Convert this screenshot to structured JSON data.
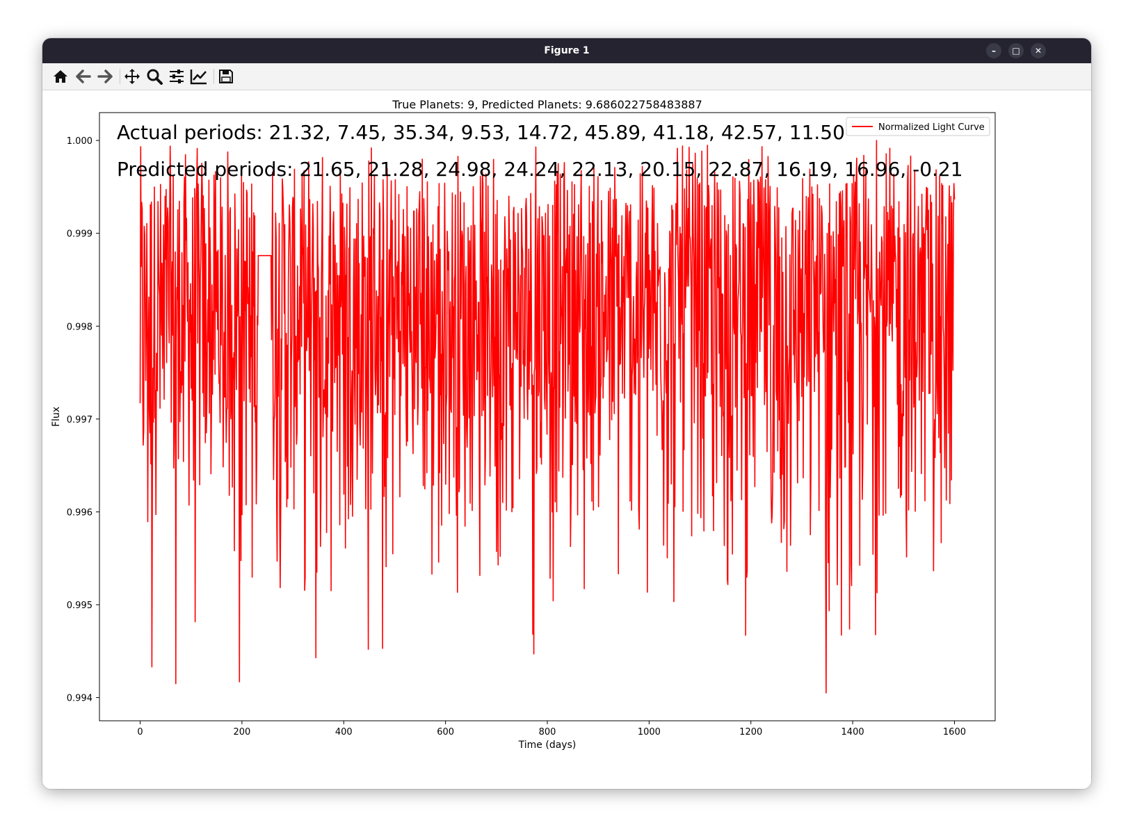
{
  "window": {
    "title": "Figure 1",
    "controls": {
      "minimize": "–",
      "maximize": "□",
      "close": "✕"
    }
  },
  "toolbar": {
    "buttons": [
      {
        "name": "home",
        "icon": "home-icon"
      },
      {
        "name": "back",
        "icon": "arrow-left-icon"
      },
      {
        "name": "forward",
        "icon": "arrow-right-icon"
      },
      {
        "name": "pan",
        "icon": "move-icon"
      },
      {
        "name": "zoom",
        "icon": "magnifier-icon"
      },
      {
        "name": "configure-subplots",
        "icon": "sliders-icon"
      },
      {
        "name": "edit-axis",
        "icon": "chart-line-icon"
      },
      {
        "name": "save",
        "icon": "floppy-disk-icon"
      }
    ]
  },
  "chart_data": {
    "type": "line",
    "title": "True Planets: 9, Predicted Planets: 9.686022758483887",
    "xlabel": "Time (days)",
    "ylabel": "Flux",
    "xlim": [
      -80,
      1680
    ],
    "ylim": [
      0.99375,
      1.0003
    ],
    "xticks": [
      0,
      200,
      400,
      600,
      800,
      1000,
      1200,
      1400,
      1600
    ],
    "xtick_labels": [
      "0",
      "200",
      "400",
      "600",
      "800",
      "1000",
      "1200",
      "1400",
      "1600"
    ],
    "yticks": [
      0.994,
      0.995,
      0.996,
      0.997,
      0.998,
      0.999,
      1.0
    ],
    "ytick_labels": [
      "0.994",
      "0.995",
      "0.996",
      "0.997",
      "0.998",
      "0.999",
      "1.000"
    ],
    "grid": false,
    "legend_position": "top-right",
    "series": [
      {
        "name": "Normalized Light Curve",
        "color": "#ff0000",
        "x_range": [
          0,
          1600
        ],
        "gap": {
          "x": [
            232,
            258
          ],
          "y": 0.99876
        },
        "notable_dips": [
          {
            "x": 23,
            "y": 0.99433
          },
          {
            "x": 70,
            "y": 0.99415
          },
          {
            "x": 195,
            "y": 0.99417
          },
          {
            "x": 345,
            "y": 0.99443
          },
          {
            "x": 448,
            "y": 0.99452
          },
          {
            "x": 476,
            "y": 0.99453
          },
          {
            "x": 773,
            "y": 0.99447
          },
          {
            "x": 1348,
            "y": 0.99405
          }
        ],
        "notable_peaks": [
          {
            "x": 454,
            "y": 0.99992
          },
          {
            "x": 777,
            "y": 0.99993
          },
          {
            "x": 1447,
            "y": 1.0
          }
        ]
      }
    ],
    "annotations": [
      "Actual periods: 21.32, 7.45, 35.34, 9.53, 14.72, 45.89, 41.18, 42.57, 11.50",
      "Predicted periods: 21.65, 21.28, 24.98, 24.24, 22.13, 20.15, 22.87, 16.19, 16.96, -0.21"
    ]
  }
}
